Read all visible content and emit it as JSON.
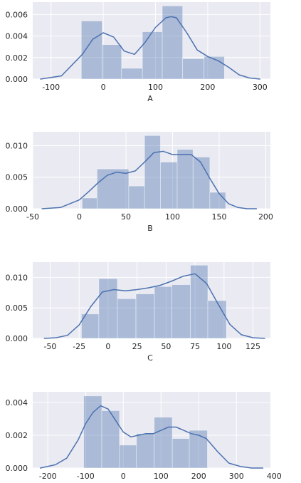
{
  "chart_data": [
    {
      "type": "histogram",
      "xlabel": "A",
      "xlim": [
        -135,
        320
      ],
      "ylim": [
        0,
        0.00715
      ],
      "xticks": [
        -100,
        0,
        100,
        200,
        300
      ],
      "yticks": [
        0.0,
        0.002,
        0.004,
        0.006
      ],
      "ytick_labels": [
        "0.000",
        "0.002",
        "0.004",
        "0.006"
      ],
      "grid": true,
      "bins": [
        {
          "x0": -42,
          "x1": -2,
          "value": 0.0054
        },
        {
          "x0": -2,
          "x1": 35,
          "value": 0.0032
        },
        {
          "x0": 35,
          "x1": 75,
          "value": 0.001
        },
        {
          "x0": 75,
          "x1": 113,
          "value": 0.0044
        },
        {
          "x0": 113,
          "x1": 152,
          "value": 0.0068
        },
        {
          "x0": 152,
          "x1": 193,
          "value": 0.0019
        },
        {
          "x0": 193,
          "x1": 232,
          "value": 0.0021
        }
      ],
      "kde": {
        "x": [
          -120,
          -80,
          -40,
          -20,
          0,
          20,
          40,
          60,
          80,
          100,
          120,
          130,
          140,
          160,
          180,
          200,
          220,
          240,
          260,
          280,
          300
        ],
        "y": [
          0.0,
          0.0003,
          0.0023,
          0.0037,
          0.0043,
          0.0039,
          0.0026,
          0.0023,
          0.0034,
          0.0048,
          0.0057,
          0.0058,
          0.0057,
          0.0043,
          0.0027,
          0.0021,
          0.0017,
          0.0011,
          0.0004,
          0.0001,
          0.0
        ]
      }
    },
    {
      "type": "histogram",
      "xlabel": "B",
      "xlim": [
        -50,
        205
      ],
      "ylim": [
        0,
        0.0122
      ],
      "xticks": [
        -50,
        0,
        50,
        100,
        150,
        200
      ],
      "yticks": [
        0.0,
        0.005,
        0.01
      ],
      "ytick_labels": [
        "0.000",
        "0.005",
        "0.010"
      ],
      "grid": true,
      "bins": [
        {
          "x0": 3,
          "x1": 19,
          "value": 0.0017
        },
        {
          "x0": 19,
          "x1": 53,
          "value": 0.0063
        },
        {
          "x0": 53,
          "x1": 70,
          "value": 0.0036
        },
        {
          "x0": 70,
          "x1": 87,
          "value": 0.0116
        },
        {
          "x0": 87,
          "x1": 105,
          "value": 0.0074
        },
        {
          "x0": 105,
          "x1": 122,
          "value": 0.0094
        },
        {
          "x0": 122,
          "x1": 140,
          "value": 0.0082
        },
        {
          "x0": 140,
          "x1": 157,
          "value": 0.0026
        }
      ],
      "kde": {
        "x": [
          -40,
          -20,
          0,
          10,
          20,
          30,
          40,
          50,
          60,
          70,
          80,
          90,
          100,
          110,
          120,
          130,
          140,
          150,
          160,
          170,
          180,
          190
        ],
        "y": [
          0.0,
          0.0002,
          0.0014,
          0.0027,
          0.0041,
          0.0053,
          0.0058,
          0.0056,
          0.006,
          0.0074,
          0.0089,
          0.0091,
          0.0086,
          0.0086,
          0.0086,
          0.0074,
          0.0048,
          0.0024,
          0.0008,
          0.0002,
          0.0,
          0.0
        ]
      }
    },
    {
      "type": "histogram",
      "xlabel": "C",
      "xlim": [
        -65,
        140
      ],
      "ylim": [
        0,
        0.0125
      ],
      "xticks": [
        -50,
        -25,
        0,
        25,
        50,
        75,
        100,
        125
      ],
      "yticks": [
        0.0,
        0.005,
        0.01
      ],
      "ytick_labels": [
        "0.000",
        "0.005",
        "0.010"
      ],
      "grid": true,
      "bins": [
        {
          "x0": -23,
          "x1": -8,
          "value": 0.004
        },
        {
          "x0": -8,
          "x1": 8,
          "value": 0.0098
        },
        {
          "x0": 8,
          "x1": 24,
          "value": 0.0065
        },
        {
          "x0": 24,
          "x1": 40,
          "value": 0.0073
        },
        {
          "x0": 40,
          "x1": 55,
          "value": 0.0085
        },
        {
          "x0": 55,
          "x1": 71,
          "value": 0.0088
        },
        {
          "x0": 71,
          "x1": 86,
          "value": 0.012
        },
        {
          "x0": 86,
          "x1": 102,
          "value": 0.0062
        }
      ],
      "kde": {
        "x": [
          -55,
          -45,
          -35,
          -25,
          -15,
          -5,
          5,
          15,
          25,
          35,
          45,
          55,
          65,
          75,
          85,
          95,
          105,
          115,
          125,
          135
        ],
        "y": [
          0.0,
          0.0001,
          0.0005,
          0.0022,
          0.0052,
          0.0076,
          0.008,
          0.0078,
          0.008,
          0.0083,
          0.0087,
          0.0094,
          0.0102,
          0.0106,
          0.009,
          0.0056,
          0.0023,
          0.0006,
          0.0001,
          0.0
        ]
      }
    },
    {
      "type": "histogram",
      "xlabel": "",
      "xlim": [
        -240,
        390
      ],
      "ylim": [
        0,
        0.00465
      ],
      "xticks": [
        -200,
        -100,
        0,
        100,
        200,
        300,
        400
      ],
      "yticks": [
        0.0,
        0.002,
        0.004
      ],
      "ytick_labels": [
        "0.000",
        "0.002",
        "0.004"
      ],
      "grid": true,
      "bins": [
        {
          "x0": -105,
          "x1": -57,
          "value": 0.0044
        },
        {
          "x0": -57,
          "x1": -10,
          "value": 0.0035
        },
        {
          "x0": -10,
          "x1": 35,
          "value": 0.0014
        },
        {
          "x0": 35,
          "x1": 82,
          "value": 0.0021
        },
        {
          "x0": 82,
          "x1": 130,
          "value": 0.0031
        },
        {
          "x0": 130,
          "x1": 175,
          "value": 0.0018
        },
        {
          "x0": 175,
          "x1": 223,
          "value": 0.0023
        }
      ],
      "kde": {
        "x": [
          -220,
          -180,
          -150,
          -120,
          -100,
          -80,
          -60,
          -40,
          -20,
          0,
          20,
          40,
          60,
          80,
          100,
          120,
          140,
          160,
          180,
          200,
          220,
          250,
          280,
          310,
          340,
          370
        ],
        "y": [
          0.0,
          0.0002,
          0.0006,
          0.0017,
          0.0027,
          0.0034,
          0.0038,
          0.0036,
          0.0029,
          0.0022,
          0.0019,
          0.002,
          0.0021,
          0.0021,
          0.0023,
          0.0025,
          0.0025,
          0.0023,
          0.0021,
          0.002,
          0.0018,
          0.001,
          0.0003,
          0.0001,
          0.0,
          0.0
        ]
      }
    }
  ]
}
